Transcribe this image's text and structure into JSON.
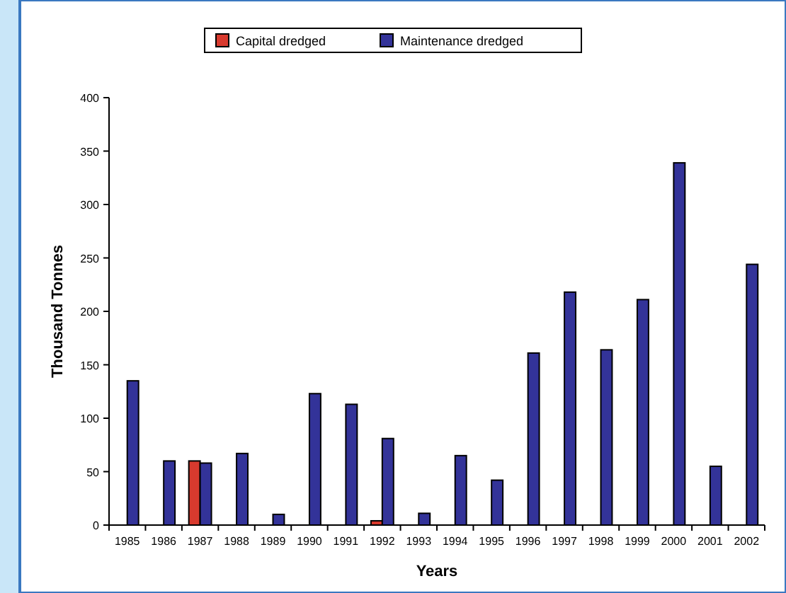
{
  "chart_data": {
    "type": "bar",
    "xlabel": "Years",
    "ylabel": "Thousand Tonnes",
    "categories": [
      "1985",
      "1986",
      "1987",
      "1988",
      "1989",
      "1990",
      "1991",
      "1992",
      "1993",
      "1994",
      "1995",
      "1996",
      "1997",
      "1998",
      "1999",
      "2000",
      "2001",
      "2002"
    ],
    "series": [
      {
        "name": "Capital dredged",
        "color": "#d83a2e",
        "values": [
          null,
          null,
          60,
          null,
          null,
          null,
          null,
          4,
          null,
          null,
          null,
          null,
          null,
          null,
          null,
          null,
          null,
          null
        ]
      },
      {
        "name": "Maintenance dredged",
        "color": "#333399",
        "values": [
          135,
          60,
          58,
          67,
          10,
          123,
          113,
          81,
          11,
          65,
          42,
          161,
          218,
          164,
          211,
          339,
          55,
          244
        ]
      }
    ],
    "ylim": [
      0,
      400
    ],
    "yticks": [
      0,
      50,
      100,
      150,
      200,
      250,
      300,
      350,
      400
    ],
    "grid": false,
    "legend": "top"
  }
}
